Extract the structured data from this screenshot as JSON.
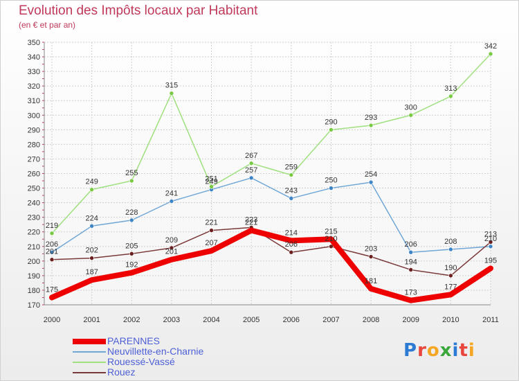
{
  "header": {
    "title": "Evolution des Impôts locaux par Habitant",
    "subtitle": "(en € et par an)"
  },
  "logo": {
    "text": "Proxiti",
    "letter_colors": [
      "#2b7bd4",
      "#e8453c",
      "#f5a623",
      "#3aa83a",
      "#2b7bd4",
      "#e8453c",
      "#f5a623"
    ]
  },
  "chart_data": {
    "type": "line",
    "x": [
      "2000",
      "2001",
      "2002",
      "2003",
      "2004",
      "2005",
      "2006",
      "2007",
      "2008",
      "2009",
      "2010",
      "2011"
    ],
    "ylim": [
      170,
      350
    ],
    "yticks": [
      170,
      180,
      190,
      200,
      210,
      220,
      230,
      240,
      250,
      260,
      270,
      280,
      290,
      300,
      310,
      320,
      330,
      340,
      350
    ],
    "grid": true,
    "legend_position": "bottom-left",
    "series": [
      {
        "name": "PARENNES",
        "color": "#ee0000",
        "line_width": 8,
        "marker": false,
        "values": [
          175,
          187,
          192,
          201,
          207,
          221,
          214,
          215,
          181,
          173,
          177,
          195
        ]
      },
      {
        "name": "Neuvillette-en-Charnie",
        "color": "#6fa6d6",
        "marker_color": "#3d85c6",
        "line_width": 1.5,
        "marker": true,
        "values": [
          206,
          224,
          228,
          241,
          249,
          257,
          243,
          250,
          254,
          206,
          208,
          210
        ]
      },
      {
        "name": "Rouessé-Vassé",
        "color": "#9fe07f",
        "marker_color": "#7ac943",
        "line_width": 1.5,
        "marker": true,
        "values": [
          219,
          249,
          255,
          315,
          251,
          267,
          259,
          290,
          293,
          300,
          313,
          342
        ]
      },
      {
        "name": "Rouez",
        "color": "#7a3838",
        "marker_color": "#6b1f1f",
        "line_width": 1.5,
        "marker": true,
        "values": [
          201,
          202,
          205,
          209,
          221,
          223,
          206,
          210,
          203,
          194,
          190,
          213
        ]
      }
    ]
  }
}
